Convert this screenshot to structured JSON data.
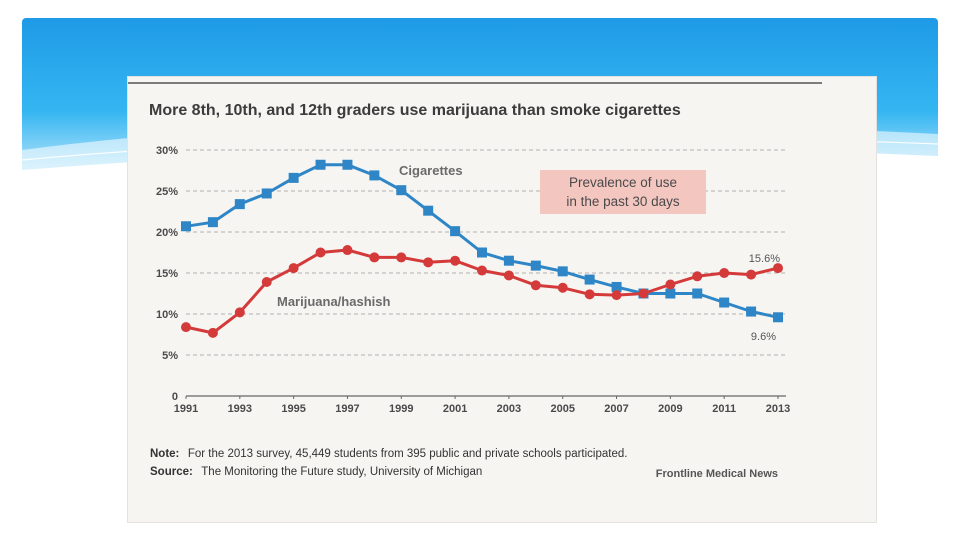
{
  "chart_data": {
    "type": "line",
    "title": "More 8th, 10th, and 12th graders use marijuana than smoke cigarettes",
    "x": [
      1991,
      1992,
      1993,
      1994,
      1995,
      1996,
      1997,
      1998,
      1999,
      2000,
      2001,
      2002,
      2003,
      2004,
      2005,
      2006,
      2007,
      2008,
      2009,
      2010,
      2011,
      2012,
      2013
    ],
    "x_tick_labels": [
      "1991",
      "1993",
      "1995",
      "1997",
      "1999",
      "2001",
      "2003",
      "2005",
      "2007",
      "2009",
      "2011",
      "2013"
    ],
    "y_tick_labels": [
      "0",
      "5%",
      "10%",
      "15%",
      "20%",
      "25%",
      "30%"
    ],
    "ylim": [
      0,
      30
    ],
    "grid": true,
    "series": [
      {
        "name": "Cigarettes",
        "color": "#2f86c6",
        "marker": "square",
        "values": [
          20.7,
          21.2,
          23.4,
          24.7,
          26.6,
          28.2,
          28.2,
          26.9,
          25.1,
          22.6,
          20.1,
          17.5,
          16.5,
          15.9,
          15.2,
          14.2,
          13.3,
          12.5,
          12.5,
          12.5,
          11.4,
          10.3,
          9.6
        ]
      },
      {
        "name": "Marijuana/hashish",
        "color": "#d43a3a",
        "marker": "circle",
        "values": [
          8.4,
          7.7,
          10.2,
          13.9,
          15.6,
          17.5,
          17.8,
          16.9,
          16.9,
          16.3,
          16.5,
          15.3,
          14.7,
          13.5,
          13.2,
          12.4,
          12.3,
          12.5,
          13.6,
          14.6,
          15.0,
          14.8,
          15.6
        ]
      }
    ],
    "end_labels": {
      "marijuana": "15.6%",
      "cigarettes": "9.6%"
    },
    "annotation": {
      "line1": "Prevalence of use",
      "line2": "in the past 30 days",
      "color": "#f4c6c0"
    },
    "note_label": "Note:",
    "note_text": "For the 2013 survey, 45,449 students from 395 public and private schools participated.",
    "source_label": "Source:",
    "source_text": "The Monitoring the Future study, University of Michigan",
    "credit": "Frontline Medical News"
  }
}
